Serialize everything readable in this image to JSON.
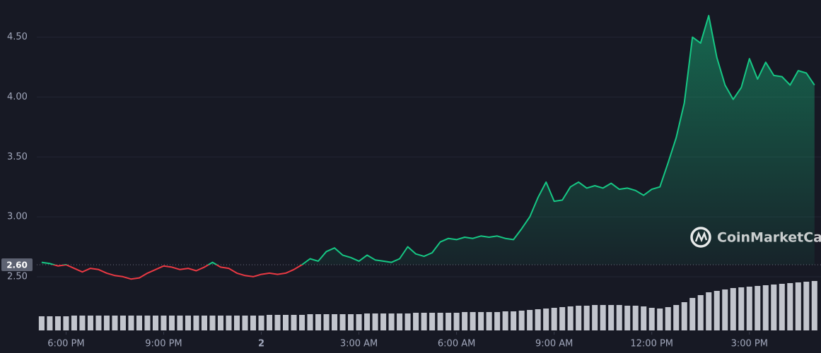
{
  "chart_data": {
    "type": "line",
    "x": [
      17.25,
      17.5,
      17.75,
      18,
      18.25,
      18.5,
      18.75,
      19,
      19.25,
      19.5,
      19.75,
      20,
      20.25,
      20.5,
      20.75,
      21,
      21.25,
      21.5,
      21.75,
      22,
      22.25,
      22.5,
      22.75,
      23,
      23.25,
      23.5,
      23.75,
      24,
      24.25,
      24.5,
      24.75,
      25,
      25.25,
      25.5,
      25.75,
      26,
      26.25,
      26.5,
      26.75,
      27,
      27.25,
      27.5,
      27.75,
      28,
      28.25,
      28.5,
      28.75,
      29,
      29.25,
      29.5,
      29.75,
      30,
      30.25,
      30.5,
      30.75,
      31,
      31.25,
      31.5,
      31.75,
      32,
      32.25,
      32.5,
      32.75,
      33,
      33.25,
      33.5,
      33.75,
      34,
      34.25,
      34.5,
      34.75,
      35,
      35.25,
      35.5,
      35.75,
      36,
      36.25,
      36.5,
      36.75,
      37,
      37.25,
      37.5,
      37.75,
      38,
      38.25,
      38.5,
      38.75,
      39,
      39.25,
      39.5,
      39.75,
      40,
      40.25,
      40.5,
      40.75,
      41
    ],
    "values": [
      2.62,
      2.61,
      2.59,
      2.6,
      2.57,
      2.54,
      2.57,
      2.56,
      2.53,
      2.51,
      2.5,
      2.48,
      2.49,
      2.53,
      2.56,
      2.59,
      2.58,
      2.56,
      2.57,
      2.55,
      2.58,
      2.62,
      2.58,
      2.57,
      2.53,
      2.51,
      2.5,
      2.52,
      2.53,
      2.52,
      2.53,
      2.56,
      2.6,
      2.65,
      2.63,
      2.71,
      2.74,
      2.68,
      2.66,
      2.63,
      2.68,
      2.64,
      2.63,
      2.62,
      2.65,
      2.75,
      2.69,
      2.67,
      2.7,
      2.79,
      2.82,
      2.81,
      2.83,
      2.82,
      2.84,
      2.83,
      2.84,
      2.82,
      2.81,
      2.9,
      3.0,
      3.16,
      3.29,
      3.13,
      3.14,
      3.25,
      3.29,
      3.24,
      3.26,
      3.24,
      3.28,
      3.23,
      3.24,
      3.22,
      3.18,
      3.23,
      3.25,
      3.45,
      3.66,
      3.95,
      4.5,
      4.45,
      4.68,
      4.33,
      4.1,
      3.98,
      4.08,
      4.32,
      4.15,
      4.29,
      4.18,
      4.17,
      4.1,
      4.22,
      4.2,
      4.1
    ],
    "volume": [
      20,
      20,
      20,
      20,
      21,
      21,
      21,
      21,
      21,
      21,
      21,
      21,
      21,
      21,
      21,
      21,
      21,
      21,
      21,
      21,
      21,
      21,
      21,
      21,
      21,
      21,
      21,
      21,
      22,
      22,
      22,
      22,
      22,
      23,
      23,
      23,
      23,
      23,
      23,
      23,
      24,
      24,
      24,
      24,
      24,
      24,
      25,
      25,
      25,
      25,
      25,
      25,
      26,
      26,
      26,
      26,
      26,
      27,
      27,
      28,
      29,
      30,
      31,
      32,
      33,
      34,
      35,
      35,
      36,
      36,
      36,
      36,
      35,
      35,
      34,
      32,
      31,
      33,
      36,
      40,
      46,
      50,
      54,
      56,
      58,
      60,
      61,
      62,
      63,
      64,
      65,
      66,
      67,
      68,
      69,
      70
    ],
    "volume_lim": [
      0,
      100
    ],
    "xlim": [
      17.1,
      41.2
    ],
    "xticks": [
      {
        "value": 18,
        "label": "6:00 PM"
      },
      {
        "value": 21,
        "label": "9:00 PM"
      },
      {
        "value": 24,
        "label": "2"
      },
      {
        "value": 27,
        "label": "3:00 AM"
      },
      {
        "value": 30,
        "label": "6:00 AM"
      },
      {
        "value": 33,
        "label": "9:00 AM"
      },
      {
        "value": 36,
        "label": "12:00 PM"
      },
      {
        "value": 39,
        "label": "3:00 PM"
      }
    ],
    "ylim": [
      2.04,
      4.81
    ],
    "yticks": [
      {
        "value": 2.5,
        "label": "2.50"
      },
      {
        "value": 3,
        "label": "3.00"
      },
      {
        "value": 3.5,
        "label": "3.50"
      },
      {
        "value": 4,
        "label": "4.00"
      },
      {
        "value": 4.5,
        "label": "4.50"
      }
    ],
    "reference": {
      "value": 2.6,
      "label": "2.60"
    },
    "color_up": "#16c784",
    "color_down": "#ea3943",
    "volume_color": "#d5d8e0",
    "grid": true,
    "watermark": "CoinMarketCap"
  }
}
